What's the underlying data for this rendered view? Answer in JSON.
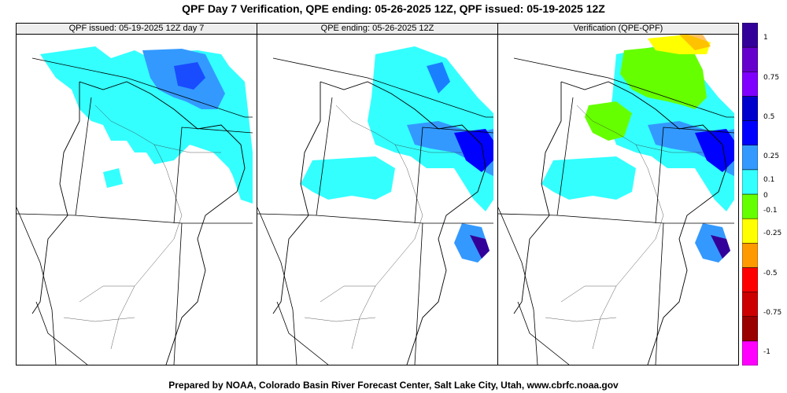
{
  "title": "QPF Day 7 Verification, QPE ending: 05-26-2025 12Z, QPF issued: 05-19-2025 12Z",
  "footer": "Prepared by NOAA, Colorado Basin River Forecast Center, Salt Lake City, Utah, www.cbrfc.noaa.gov",
  "panels": [
    {
      "label": "QPF issued: 05-19-2025 12Z day 7"
    },
    {
      "label": "QPE ending: 05-26-2025 12Z"
    },
    {
      "label": "Verification (QPE-QPF)"
    }
  ],
  "colorbar": {
    "colors": [
      "#ff00ff",
      "#990000",
      "#cc0000",
      "#ff0000",
      "#ff9900",
      "#ffff00",
      "#66ff00",
      "#33ffff",
      "#3399ff",
      "#0000ff",
      "#0000cc",
      "#7f00ff",
      "#6600cc",
      "#330099"
    ],
    "ticks": [
      "1",
      "0.75",
      "0.5",
      "0.25",
      "0.1",
      "0",
      "-0.1",
      "-0.25",
      "-0.5",
      "-0.75",
      "-1"
    ]
  }
}
